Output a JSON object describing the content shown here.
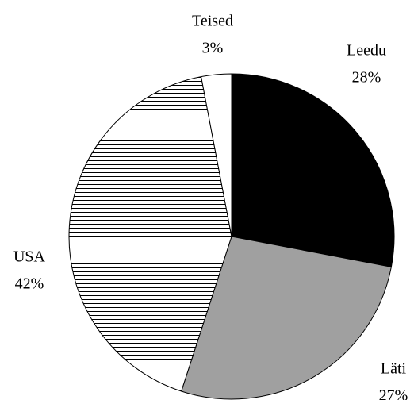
{
  "chart_data": {
    "type": "pie",
    "categories": [
      "Leedu",
      "Läti",
      "USA",
      "Teised"
    ],
    "values": [
      28,
      27,
      42,
      3
    ],
    "value_labels": [
      "28%",
      "27%",
      "42%",
      "3%"
    ],
    "colors": [
      "#000000",
      "#a0a0a0",
      "#ffffff",
      "#ffffff"
    ],
    "hatch": [
      null,
      null,
      "horizontal",
      null
    ]
  }
}
